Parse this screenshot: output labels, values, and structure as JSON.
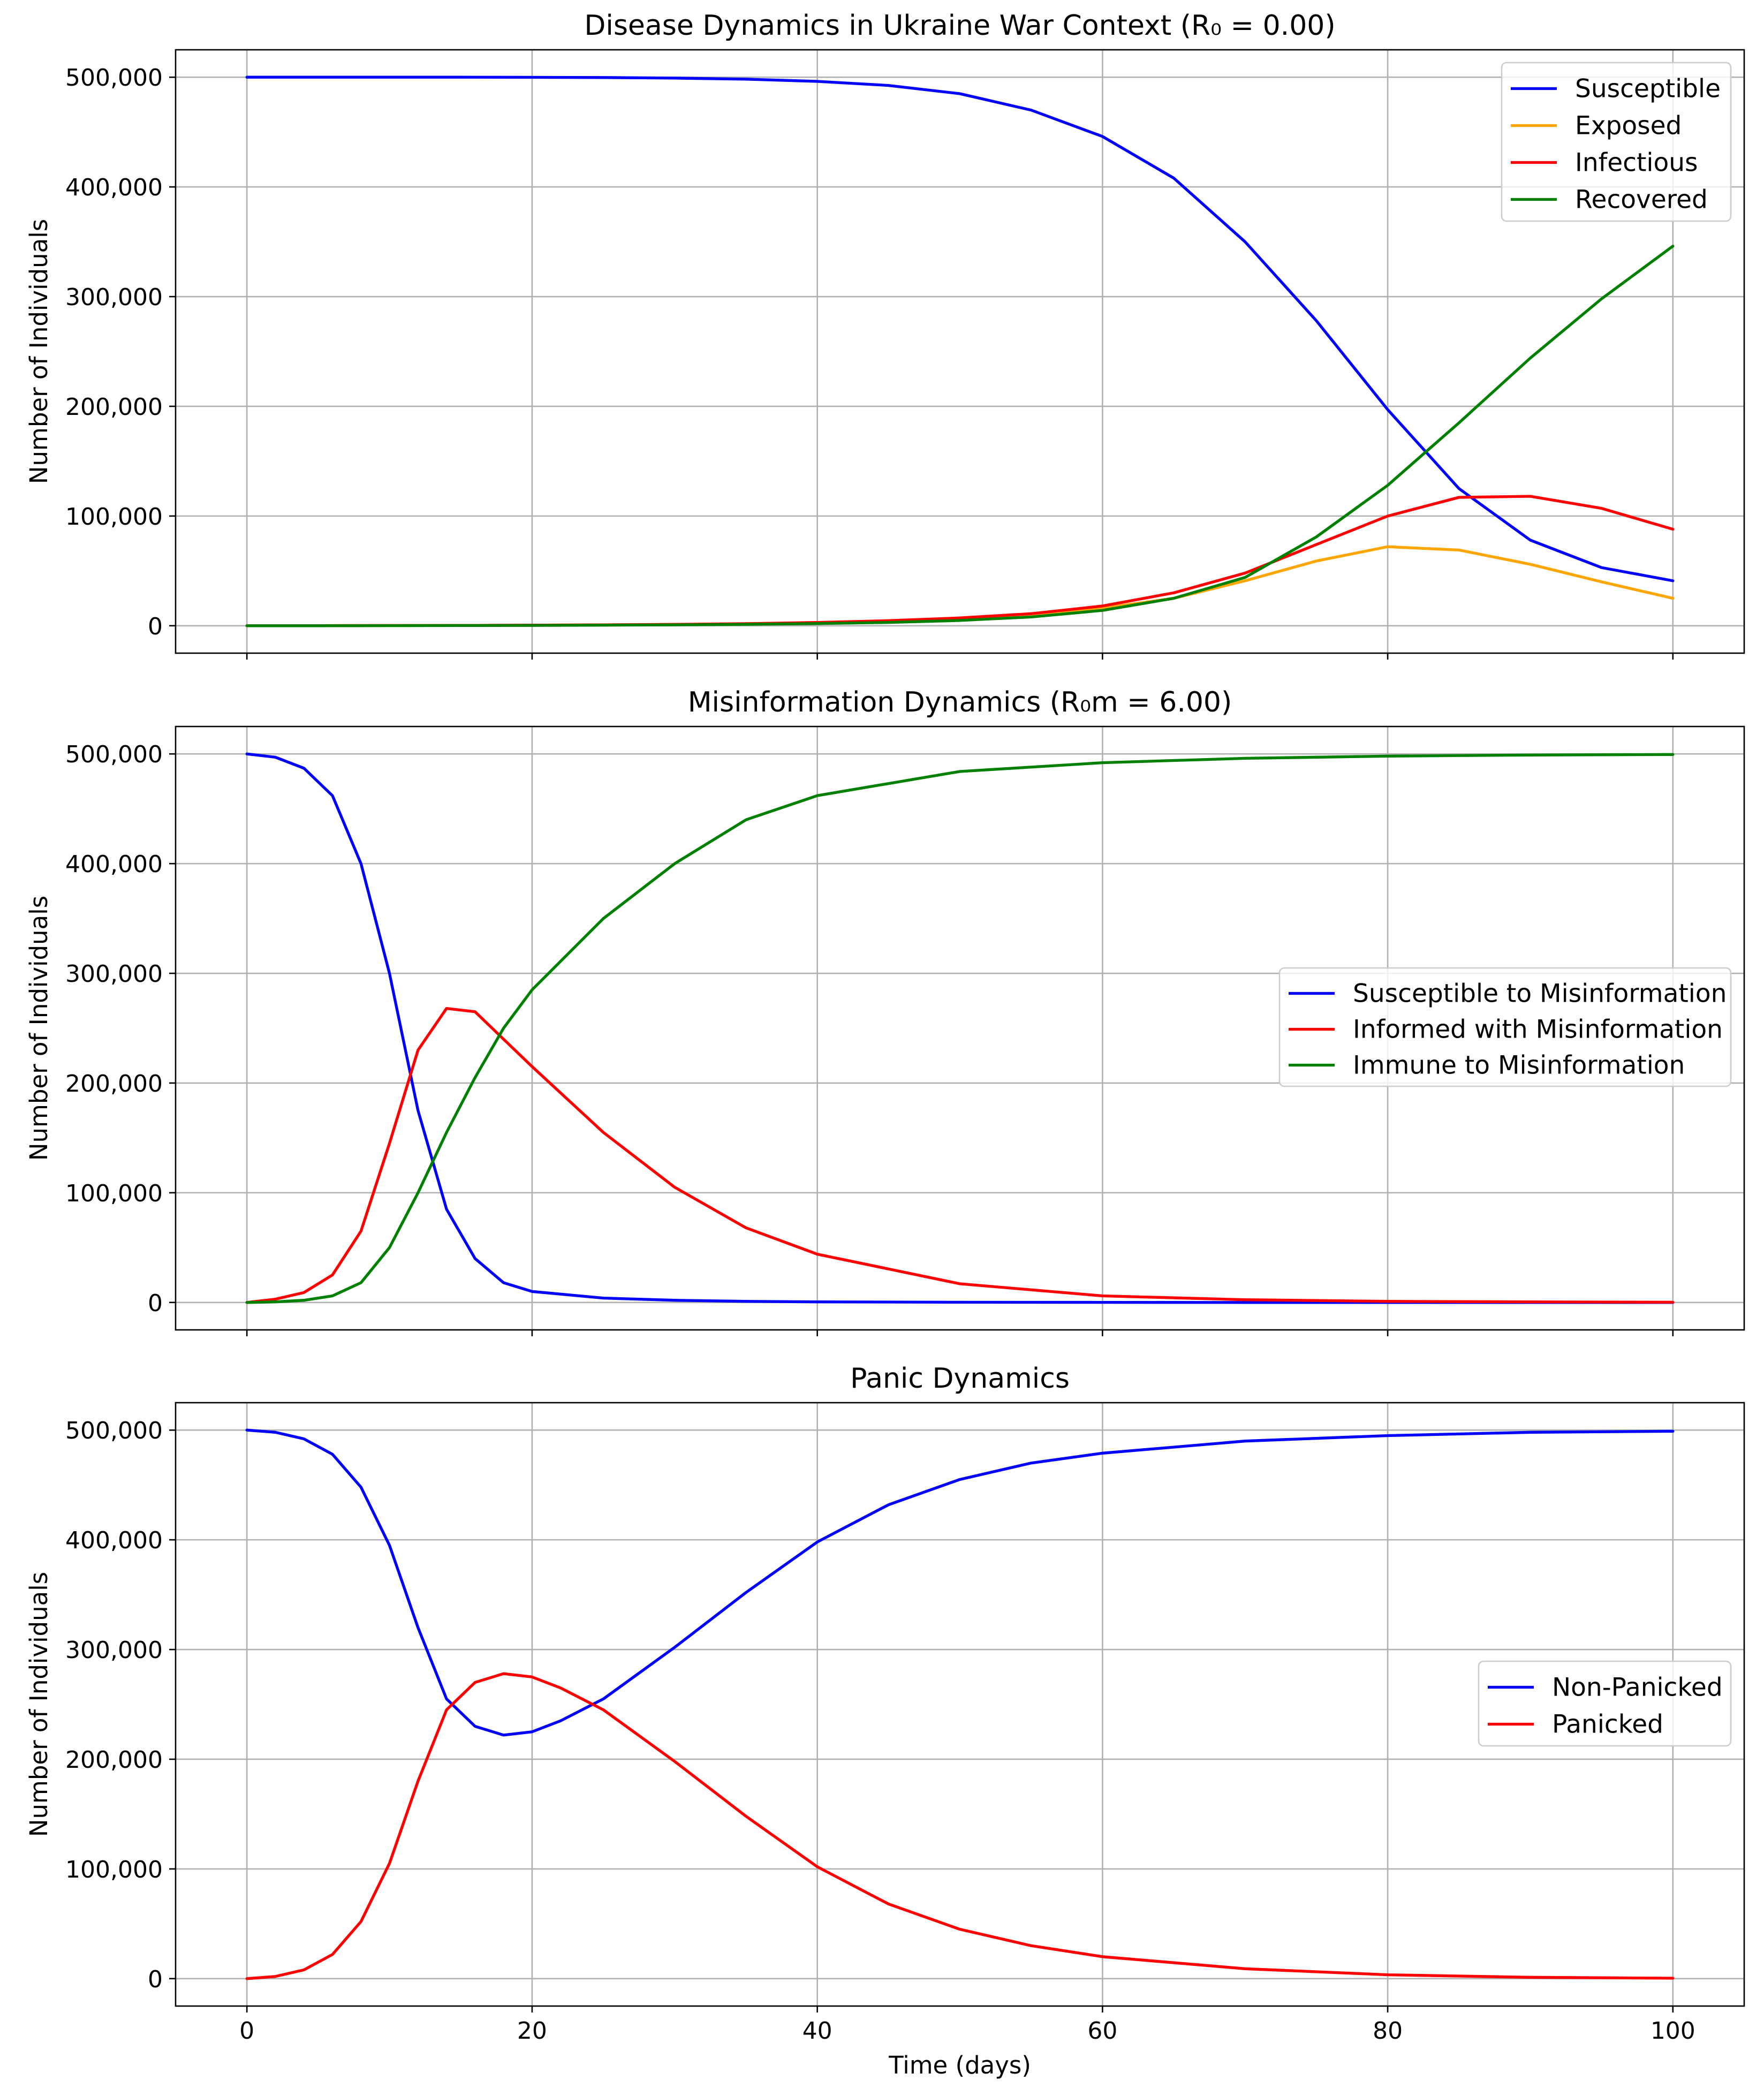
{
  "chart_data": [
    {
      "type": "line",
      "title": "Disease Dynamics in Ukraine War Context (R₀ = 0.00)",
      "xlabel": "",
      "ylabel": "Number of Individuals",
      "xlim": [
        -5,
        105
      ],
      "ylim": [
        -25000,
        525000
      ],
      "xticks": [
        0,
        20,
        40,
        60,
        80,
        100
      ],
      "xticklabels": [
        "",
        "",
        "",
        "",
        "",
        ""
      ],
      "yticks": [
        0,
        100000,
        200000,
        300000,
        400000,
        500000
      ],
      "yticklabels": [
        "0",
        "100,000",
        "200,000",
        "300,000",
        "400,000",
        "500,000"
      ],
      "grid": true,
      "legend_position": "top-right",
      "x": [
        0,
        5,
        10,
        15,
        20,
        25,
        30,
        35,
        40,
        45,
        50,
        55,
        60,
        65,
        70,
        75,
        80,
        85,
        90,
        95,
        100
      ],
      "series": [
        {
          "name": "Susceptible",
          "color": "#0000ff",
          "values": [
            500000,
            500000,
            500000,
            500000,
            499900,
            499700,
            499200,
            498200,
            496200,
            492500,
            485000,
            470000,
            446000,
            408000,
            350000,
            278000,
            197000,
            125000,
            78000,
            53000,
            41000
          ]
        },
        {
          "name": "Exposed",
          "color": "#ffa500",
          "values": [
            0,
            100,
            200,
            300,
            500,
            800,
            1200,
            1800,
            2800,
            4300,
            6500,
            10000,
            16000,
            25000,
            41000,
            59000,
            72000,
            69000,
            56000,
            40000,
            25000
          ]
        },
        {
          "name": "Infectious",
          "color": "#ff0000",
          "values": [
            0,
            100,
            200,
            300,
            500,
            800,
            1200,
            1900,
            3000,
            4600,
            7100,
            11000,
            18000,
            30000,
            48000,
            74000,
            100000,
            117000,
            118000,
            107000,
            88000
          ]
        },
        {
          "name": "Recovered",
          "color": "#008000",
          "values": [
            0,
            0,
            100,
            200,
            300,
            500,
            800,
            1300,
            2000,
            3000,
            4800,
            8000,
            14000,
            25000,
            44000,
            81000,
            128000,
            185000,
            244000,
            298000,
            346000
          ]
        }
      ]
    },
    {
      "type": "line",
      "title": "Misinformation Dynamics (R₀m = 6.00)",
      "xlabel": "",
      "ylabel": "Number of Individuals",
      "xlim": [
        -5,
        105
      ],
      "ylim": [
        -25000,
        525000
      ],
      "xticks": [
        0,
        20,
        40,
        60,
        80,
        100
      ],
      "xticklabels": [
        "",
        "",
        "",
        "",
        "",
        ""
      ],
      "yticks": [
        0,
        100000,
        200000,
        300000,
        400000,
        500000
      ],
      "yticklabels": [
        "0",
        "100,000",
        "200,000",
        "300,000",
        "400,000",
        "500,000"
      ],
      "grid": true,
      "legend_position": "center-right",
      "x": [
        0,
        2,
        4,
        6,
        8,
        10,
        12,
        14,
        16,
        18,
        20,
        25,
        30,
        35,
        40,
        50,
        60,
        70,
        80,
        90,
        100
      ],
      "series": [
        {
          "name": "Susceptible to Misinformation",
          "color": "#0000ff",
          "values": [
            500000,
            497000,
            487000,
            462000,
            400000,
            300000,
            175000,
            85000,
            40000,
            18000,
            10000,
            4000,
            2000,
            1000,
            500,
            200,
            100,
            0,
            0,
            0,
            0
          ]
        },
        {
          "name": "Informed with Misinformation",
          "color": "#ff0000",
          "values": [
            0,
            3000,
            9000,
            25000,
            65000,
            145000,
            230000,
            268000,
            265000,
            240000,
            215000,
            155000,
            105000,
            68000,
            44000,
            17000,
            6000,
            2500,
            1000,
            500,
            200
          ]
        },
        {
          "name": "Immune to Misinformation",
          "color": "#008000",
          "values": [
            0,
            500,
            2000,
            6000,
            18000,
            50000,
            100000,
            155000,
            205000,
            250000,
            285000,
            350000,
            400000,
            440000,
            462000,
            484000,
            492000,
            496000,
            498000,
            499000,
            499500
          ]
        }
      ]
    },
    {
      "type": "line",
      "title": "Panic Dynamics",
      "xlabel": "Time (days)",
      "ylabel": "Number of Individuals",
      "xlim": [
        -5,
        105
      ],
      "ylim": [
        -25000,
        525000
      ],
      "xticks": [
        0,
        20,
        40,
        60,
        80,
        100
      ],
      "xticklabels": [
        "0",
        "20",
        "40",
        "60",
        "80",
        "100"
      ],
      "yticks": [
        0,
        100000,
        200000,
        300000,
        400000,
        500000
      ],
      "yticklabels": [
        "0",
        "100,000",
        "200,000",
        "300,000",
        "400,000",
        "500,000"
      ],
      "grid": true,
      "legend_position": "center-right",
      "x": [
        0,
        2,
        4,
        6,
        8,
        10,
        12,
        14,
        16,
        18,
        20,
        22,
        25,
        30,
        35,
        40,
        45,
        50,
        55,
        60,
        70,
        80,
        90,
        100
      ],
      "series": [
        {
          "name": "Non-Panicked",
          "color": "#0000ff",
          "values": [
            500000,
            498000,
            492000,
            478000,
            448000,
            395000,
            320000,
            255000,
            230000,
            222000,
            225000,
            235000,
            255000,
            302000,
            352000,
            398000,
            432000,
            455000,
            470000,
            479000,
            490000,
            495000,
            498000,
            499000
          ]
        },
        {
          "name": "Panicked",
          "color": "#ff0000",
          "values": [
            0,
            2000,
            8000,
            22000,
            52000,
            105000,
            180000,
            245000,
            270000,
            278000,
            275000,
            265000,
            245000,
            198000,
            148000,
            102000,
            68000,
            45000,
            30000,
            20000,
            9000,
            3500,
            1200,
            400
          ]
        }
      ]
    }
  ]
}
